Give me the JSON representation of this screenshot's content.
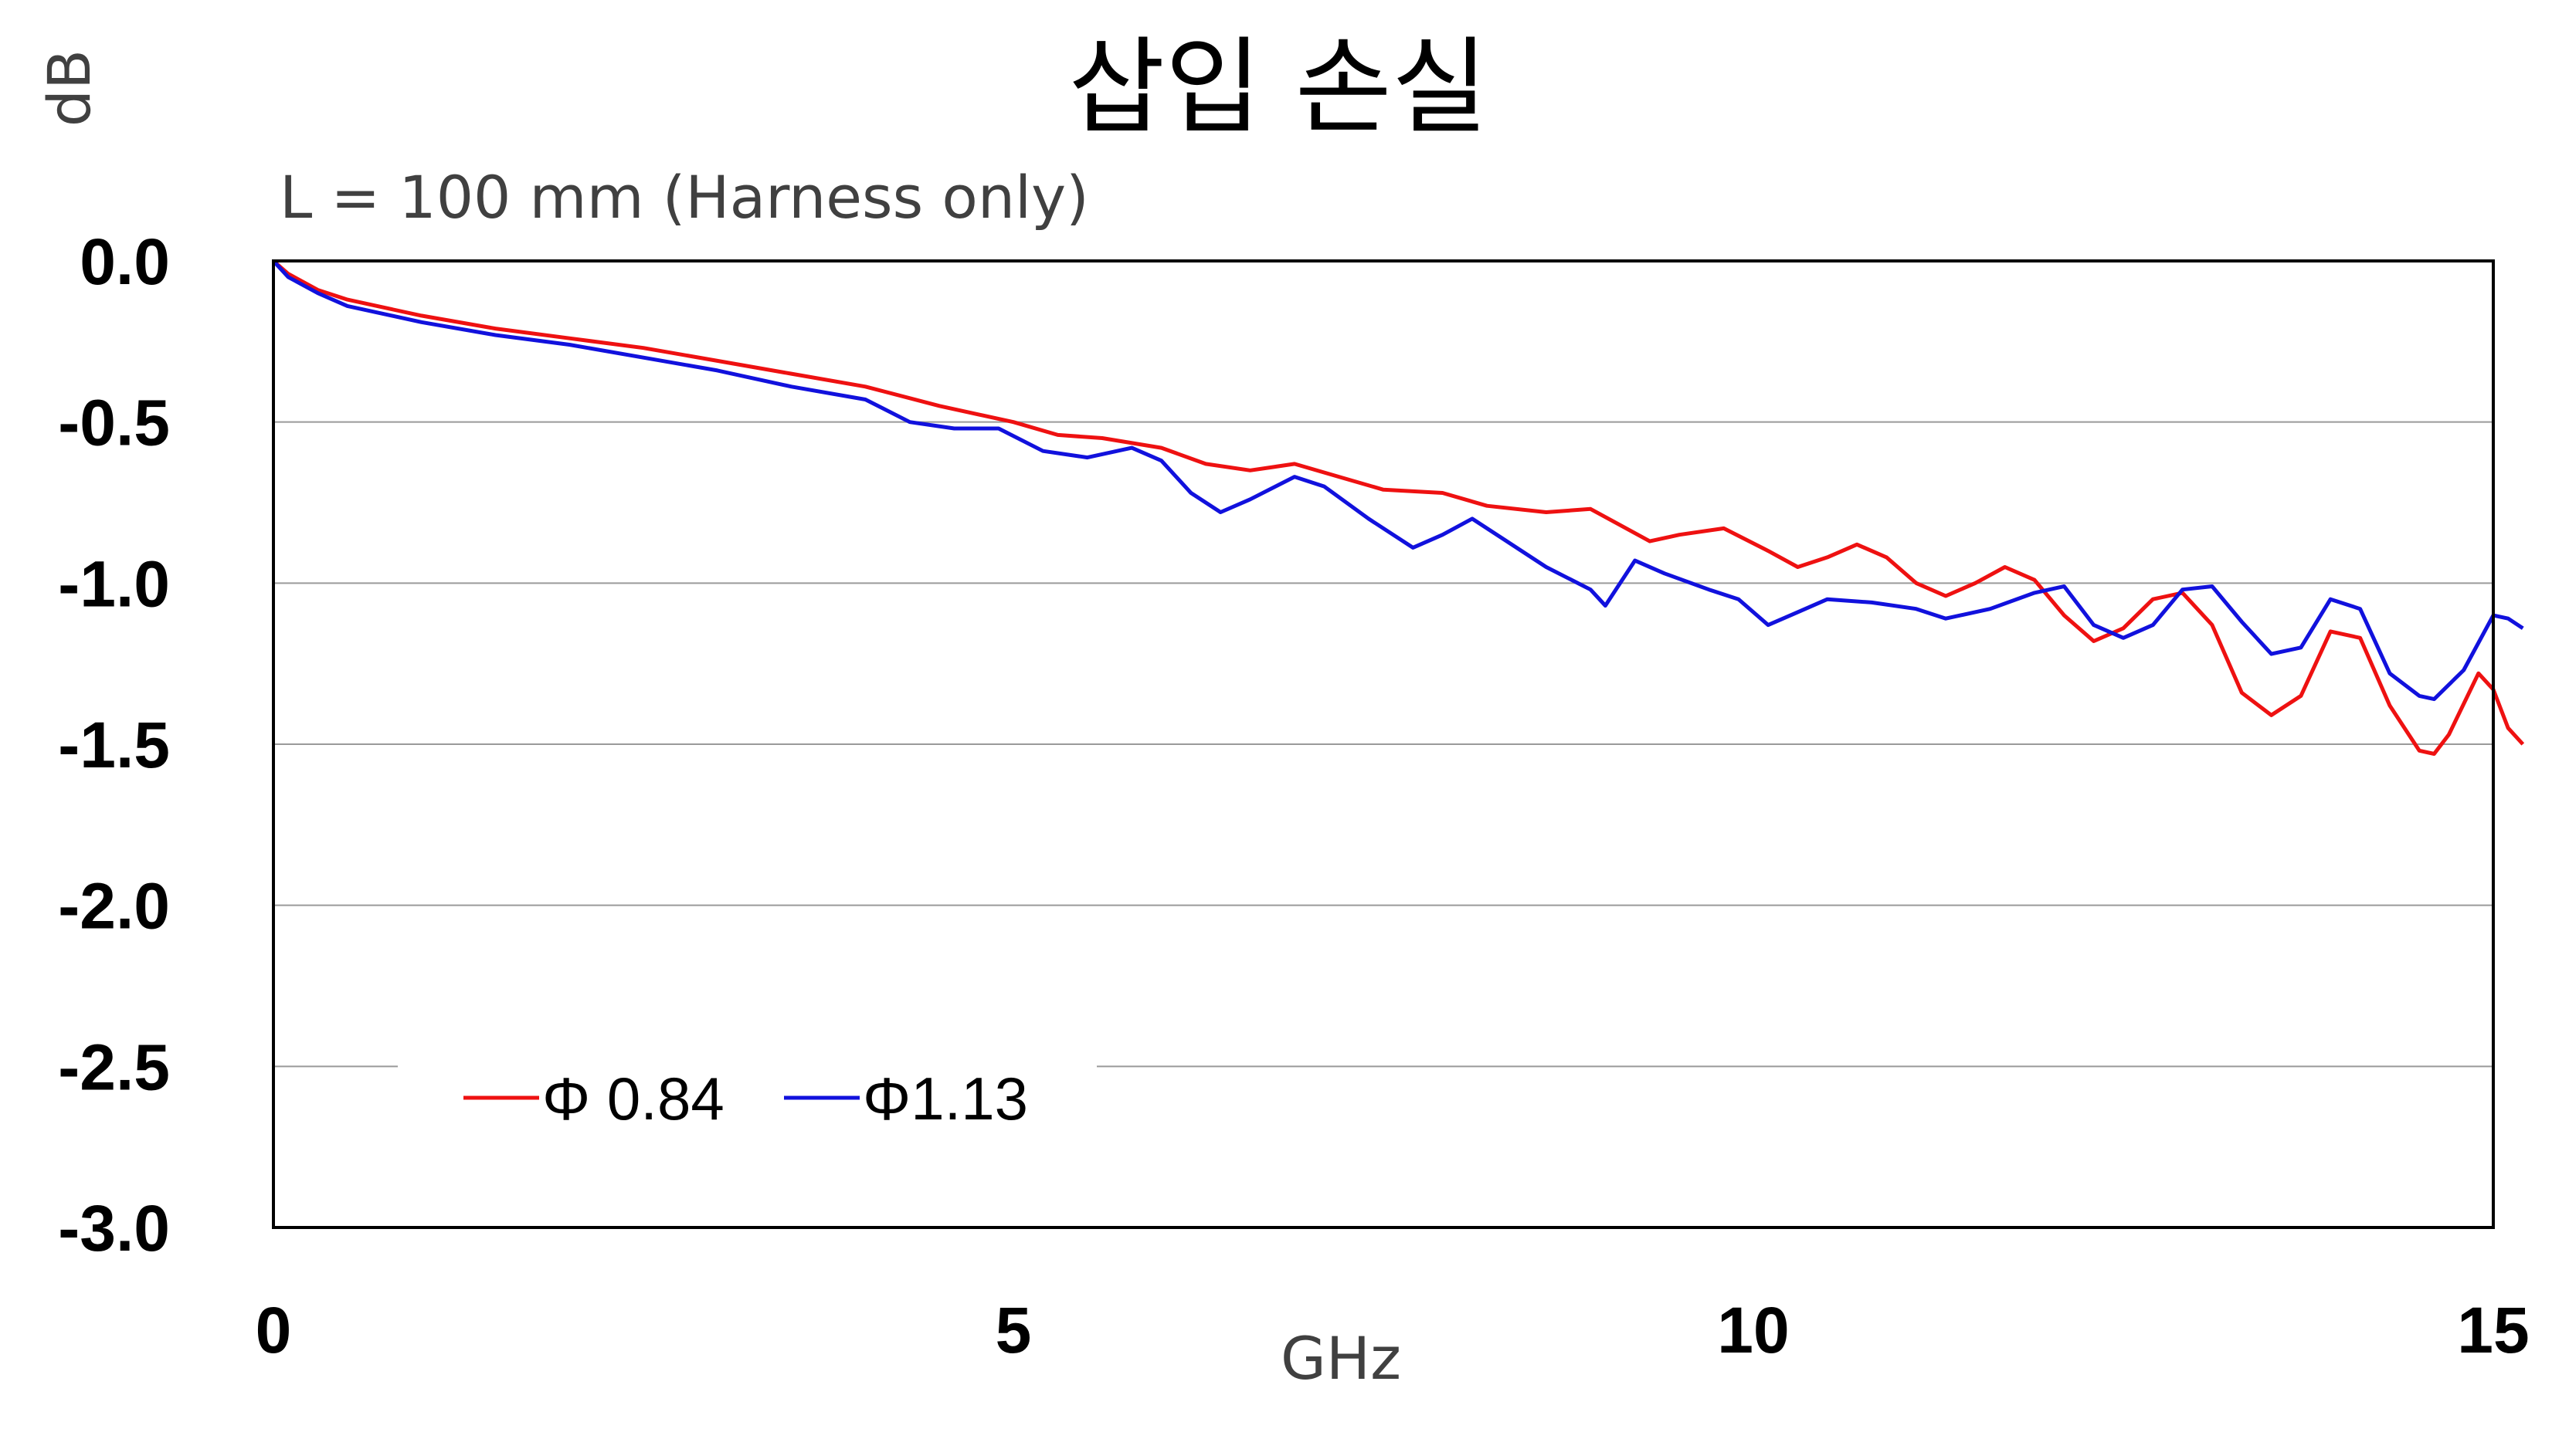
{
  "chart_data": {
    "type": "line",
    "title": "삽입 손실",
    "subtitle": "L = 100 mm (Harness only)",
    "ylabel": "dB",
    "xlabel": "GHz",
    "xlim": [
      0,
      15
    ],
    "ylim": [
      -3.0,
      0.0
    ],
    "x_ticks": [
      "0",
      "5",
      "10",
      "15"
    ],
    "y_ticks": [
      "0.0",
      "-0.5",
      "-1.0",
      "-1.5",
      "-2.0",
      "-2.5",
      "-3.0"
    ],
    "grid": "horizontal",
    "legend_position": "lower-left",
    "series": [
      {
        "name": "Φ 0.84",
        "color": "#ee1111",
        "points": [
          [
            0,
            0.0
          ],
          [
            0.1,
            -0.04
          ],
          [
            0.3,
            -0.09
          ],
          [
            0.5,
            -0.12
          ],
          [
            0.8,
            -0.15
          ],
          [
            1.0,
            -0.17
          ],
          [
            1.5,
            -0.21
          ],
          [
            2.0,
            -0.24
          ],
          [
            2.5,
            -0.27
          ],
          [
            3.0,
            -0.31
          ],
          [
            3.5,
            -0.35
          ],
          [
            4.0,
            -0.39
          ],
          [
            4.5,
            -0.45
          ],
          [
            5.0,
            -0.5
          ],
          [
            5.3,
            -0.54
          ],
          [
            5.6,
            -0.55
          ],
          [
            6.0,
            -0.58
          ],
          [
            6.3,
            -0.63
          ],
          [
            6.6,
            -0.65
          ],
          [
            6.9,
            -0.63
          ],
          [
            7.2,
            -0.67
          ],
          [
            7.5,
            -0.71
          ],
          [
            7.9,
            -0.72
          ],
          [
            8.2,
            -0.76
          ],
          [
            8.6,
            -0.78
          ],
          [
            8.9,
            -0.77
          ],
          [
            9.1,
            -0.82
          ],
          [
            9.3,
            -0.87
          ],
          [
            9.5,
            -0.85
          ],
          [
            9.8,
            -0.83
          ],
          [
            10.1,
            -0.9
          ],
          [
            10.3,
            -0.95
          ],
          [
            10.5,
            -0.92
          ],
          [
            10.7,
            -0.88
          ],
          [
            10.9,
            -0.92
          ],
          [
            11.1,
            -1.0
          ],
          [
            11.3,
            -1.04
          ],
          [
            11.5,
            -1.0
          ],
          [
            11.7,
            -0.95
          ],
          [
            11.9,
            -0.99
          ],
          [
            12.1,
            -1.1
          ],
          [
            12.3,
            -1.18
          ],
          [
            12.5,
            -1.14
          ],
          [
            12.7,
            -1.05
          ],
          [
            12.9,
            -1.03
          ],
          [
            13.1,
            -1.13
          ],
          [
            13.3,
            -1.34
          ],
          [
            13.5,
            -1.41
          ],
          [
            13.7,
            -1.35
          ],
          [
            13.9,
            -1.15
          ],
          [
            14.1,
            -1.17
          ],
          [
            14.3,
            -1.38
          ],
          [
            14.5,
            -1.52
          ],
          [
            14.6,
            -1.53
          ],
          [
            14.7,
            -1.47
          ],
          [
            14.9,
            -1.28
          ],
          [
            15.0,
            -1.33
          ],
          [
            15.1,
            -1.45
          ],
          [
            15.2,
            -1.5
          ]
        ]
      },
      {
        "name": "Φ1.13",
        "color": "#1111dd",
        "points": [
          [
            0,
            0.0
          ],
          [
            0.1,
            -0.05
          ],
          [
            0.3,
            -0.1
          ],
          [
            0.5,
            -0.14
          ],
          [
            0.8,
            -0.17
          ],
          [
            1.0,
            -0.19
          ],
          [
            1.5,
            -0.23
          ],
          [
            2.0,
            -0.26
          ],
          [
            2.5,
            -0.3
          ],
          [
            3.0,
            -0.34
          ],
          [
            3.5,
            -0.39
          ],
          [
            4.0,
            -0.43
          ],
          [
            4.3,
            -0.5
          ],
          [
            4.6,
            -0.52
          ],
          [
            4.9,
            -0.52
          ],
          [
            5.2,
            -0.59
          ],
          [
            5.5,
            -0.61
          ],
          [
            5.8,
            -0.58
          ],
          [
            6.0,
            -0.62
          ],
          [
            6.2,
            -0.72
          ],
          [
            6.4,
            -0.78
          ],
          [
            6.6,
            -0.74
          ],
          [
            6.9,
            -0.67
          ],
          [
            7.1,
            -0.7
          ],
          [
            7.4,
            -0.8
          ],
          [
            7.7,
            -0.89
          ],
          [
            7.9,
            -0.85
          ],
          [
            8.1,
            -0.8
          ],
          [
            8.3,
            -0.86
          ],
          [
            8.6,
            -0.95
          ],
          [
            8.9,
            -1.02
          ],
          [
            9.0,
            -1.07
          ],
          [
            9.2,
            -0.93
          ],
          [
            9.4,
            -0.97
          ],
          [
            9.7,
            -1.02
          ],
          [
            9.9,
            -1.05
          ],
          [
            10.1,
            -1.13
          ],
          [
            10.3,
            -1.09
          ],
          [
            10.5,
            -1.05
          ],
          [
            10.8,
            -1.06
          ],
          [
            11.1,
            -1.08
          ],
          [
            11.3,
            -1.11
          ],
          [
            11.6,
            -1.08
          ],
          [
            11.9,
            -1.03
          ],
          [
            12.1,
            -1.01
          ],
          [
            12.3,
            -1.13
          ],
          [
            12.5,
            -1.17
          ],
          [
            12.7,
            -1.13
          ],
          [
            12.9,
            -1.02
          ],
          [
            13.1,
            -1.01
          ],
          [
            13.3,
            -1.12
          ],
          [
            13.5,
            -1.22
          ],
          [
            13.7,
            -1.2
          ],
          [
            13.9,
            -1.05
          ],
          [
            14.1,
            -1.08
          ],
          [
            14.3,
            -1.28
          ],
          [
            14.5,
            -1.35
          ],
          [
            14.6,
            -1.36
          ],
          [
            14.8,
            -1.27
          ],
          [
            15.0,
            -1.1
          ],
          [
            15.1,
            -1.11
          ],
          [
            15.2,
            -1.14
          ]
        ]
      }
    ]
  }
}
